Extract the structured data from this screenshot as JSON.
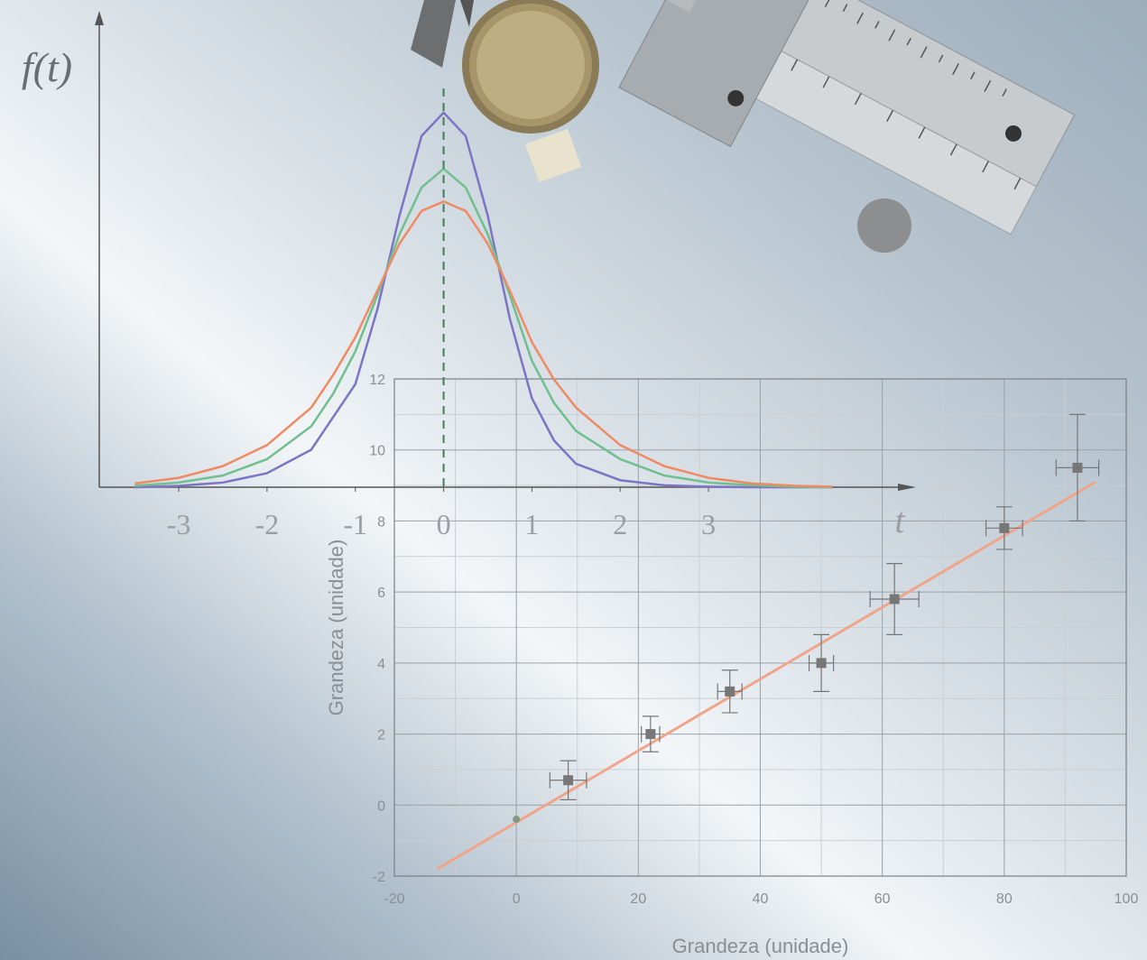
{
  "chart_data": [
    {
      "type": "line",
      "ylabel": "f(t)",
      "xlabel": "t",
      "x": [
        -3.5,
        -3,
        -2.5,
        -2,
        -1.5,
        -1.25,
        -1,
        -0.75,
        -0.5,
        -0.25,
        0,
        0.25,
        0.5,
        0.75,
        1,
        1.25,
        1.5,
        2,
        2.5,
        3,
        3.5,
        4,
        4.4
      ],
      "series": [
        {
          "color": "#7e74c4",
          "values": [
            0,
            0.003,
            0.01,
            0.03,
            0.08,
            0.15,
            0.22,
            0.38,
            0.58,
            0.75,
            0.8,
            0.75,
            0.58,
            0.36,
            0.19,
            0.1,
            0.05,
            0.015,
            0.004,
            0.001,
            0,
            0,
            0
          ]
        },
        {
          "color": "#6fbf8f",
          "values": [
            0.003,
            0.01,
            0.025,
            0.06,
            0.13,
            0.2,
            0.29,
            0.41,
            0.54,
            0.64,
            0.68,
            0.64,
            0.54,
            0.41,
            0.27,
            0.18,
            0.12,
            0.06,
            0.025,
            0.01,
            0.004,
            0.001,
            0
          ]
        },
        {
          "color": "#ef8a64",
          "values": [
            0.008,
            0.02,
            0.045,
            0.09,
            0.17,
            0.24,
            0.32,
            0.42,
            0.52,
            0.59,
            0.61,
            0.59,
            0.52,
            0.42,
            0.31,
            0.23,
            0.17,
            0.09,
            0.045,
            0.02,
            0.008,
            0.003,
            0.001
          ]
        }
      ],
      "vline_x": 0,
      "xlim": [
        -3.9,
        5.35
      ],
      "ylim": [
        0,
        1
      ],
      "xticks": [
        -3,
        -2,
        -1,
        0,
        1,
        2,
        3
      ]
    },
    {
      "type": "scatter",
      "xlabel": "Grandeza (unidade)",
      "ylabel": "Grandeza (unidade)",
      "x": [
        8.5,
        22,
        35,
        50,
        62,
        80,
        92
      ],
      "series": [
        {
          "color": "#777777",
          "values": [
            0.7,
            2.0,
            3.2,
            4.0,
            5.8,
            7.8,
            9.5
          ],
          "xerr": [
            3,
            1.5,
            2,
            2,
            4,
            3,
            3.5
          ],
          "yerr": [
            0.55,
            0.5,
            0.6,
            0.8,
            1.0,
            0.6,
            1.5
          ]
        }
      ],
      "extra_point": {
        "x": 0,
        "y": -0.4,
        "color": "#7f9a7f"
      },
      "fit": {
        "x": [
          -13,
          95
        ],
        "y": [
          -1.8,
          9.1
        ],
        "color": "#f0a58a"
      },
      "xlim": [
        -20,
        100
      ],
      "ylim": [
        -2,
        12
      ],
      "xticks": [
        -20,
        0,
        20,
        40,
        60,
        80,
        100
      ],
      "yticks": [
        -2,
        0,
        2,
        4,
        6,
        8,
        10,
        12
      ],
      "minor_xticks": [
        -10,
        10,
        30,
        50,
        70,
        90
      ],
      "minor_yticks": [
        -1,
        1,
        3,
        5,
        7,
        9,
        11
      ],
      "grid": true
    }
  ]
}
